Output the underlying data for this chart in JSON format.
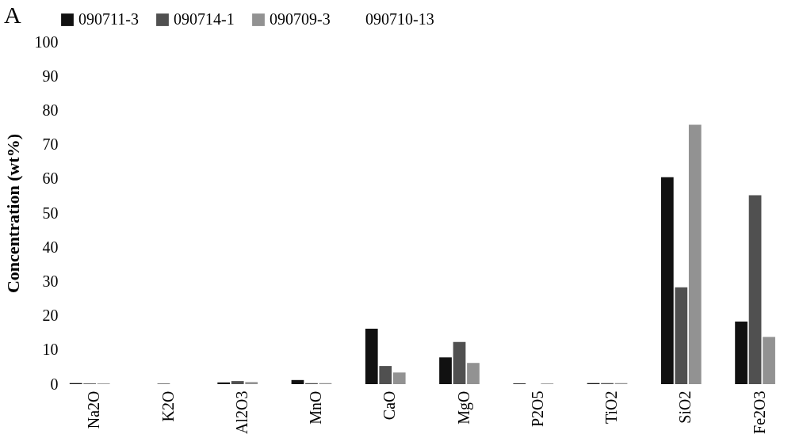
{
  "chart_data": {
    "type": "bar",
    "title": "A",
    "ylabel": "Concentration (wt%)",
    "categories": [
      "Na2O",
      "K2O",
      "Al2O3",
      "MnO",
      "CaO",
      "MgO",
      "P2O5",
      "TiO2",
      "SiO2",
      "Fe2O3"
    ],
    "series": [
      {
        "name": "090711-3",
        "color": "#111111",
        "values": [
          0.3,
          0,
          0.5,
          1.2,
          16.2,
          7.8,
          0.2,
          0.3,
          60.5,
          18.3
        ]
      },
      {
        "name": "090714-1",
        "color": "#505050",
        "values": [
          0.2,
          0.2,
          0.9,
          0.3,
          5.3,
          12.3,
          0,
          0.3,
          28.3,
          55.2
        ]
      },
      {
        "name": "090709-3",
        "color": "#929292",
        "values": [
          0.2,
          0,
          0.6,
          0.3,
          3.4,
          6.2,
          0.2,
          0.3,
          75.8,
          13.8
        ]
      },
      {
        "name": "090710-13",
        "values": [
          null,
          null,
          null,
          null,
          null,
          null,
          null,
          null,
          null,
          null
        ]
      }
    ],
    "ylim": [
      0,
      100
    ],
    "yticks": [
      0,
      10,
      20,
      30,
      40,
      50,
      60,
      70,
      80,
      90,
      100
    ],
    "grid": false,
    "legend": "top"
  }
}
